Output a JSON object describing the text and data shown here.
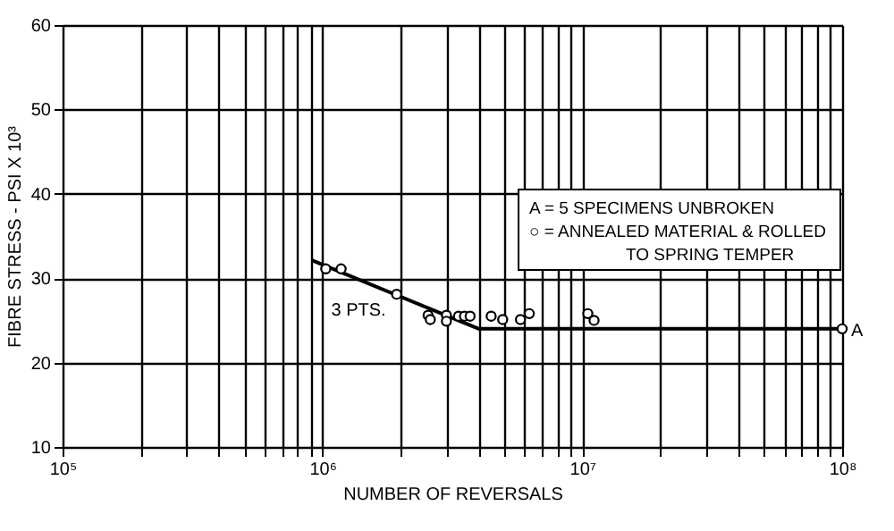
{
  "chart_data": {
    "type": "scatter",
    "xlabel": "NUMBER OF REVERSALS",
    "ylabel": "FIBRE STRESS - PSI X 10³",
    "log": "x",
    "grid": true,
    "marker": "circle",
    "xlim": [
      100000,
      100000000
    ],
    "ylim": [
      10,
      60
    ],
    "xticks": [
      {
        "value": 100000,
        "label": "10⁵"
      },
      {
        "value": 200000,
        "label": null
      },
      {
        "value": 300000,
        "label": null
      },
      {
        "value": 400000,
        "label": null
      },
      {
        "value": 500000,
        "label": null
      },
      {
        "value": 600000,
        "label": null
      },
      {
        "value": 700000,
        "label": null
      },
      {
        "value": 800000,
        "label": null
      },
      {
        "value": 900000,
        "label": null
      },
      {
        "value": 1000000,
        "label": "10⁶"
      },
      {
        "value": 2000000,
        "label": null
      },
      {
        "value": 3000000,
        "label": null
      },
      {
        "value": 4000000,
        "label": null
      },
      {
        "value": 5000000,
        "label": null
      },
      {
        "value": 6000000,
        "label": null
      },
      {
        "value": 7000000,
        "label": null
      },
      {
        "value": 8000000,
        "label": null
      },
      {
        "value": 9000000,
        "label": null
      },
      {
        "value": 10000000,
        "label": "10⁷"
      },
      {
        "value": 20000000,
        "label": null
      },
      {
        "value": 30000000,
        "label": null
      },
      {
        "value": 40000000,
        "label": null
      },
      {
        "value": 50000000,
        "label": null
      },
      {
        "value": 60000000,
        "label": null
      },
      {
        "value": 70000000,
        "label": null
      },
      {
        "value": 80000000,
        "label": null
      },
      {
        "value": 90000000,
        "label": null
      },
      {
        "value": 100000000,
        "label": "10⁸"
      }
    ],
    "yticks": [
      10,
      20,
      30,
      40,
      50,
      60
    ],
    "series": [
      {
        "type": "line",
        "color": "#000000",
        "marker": "none",
        "line_style": "solid",
        "x": [
          915000,
          4000000,
          100000000
        ],
        "values": [
          32.1,
          24,
          24
        ]
      },
      {
        "color": "#000000",
        "x": [
          1030000,
          1180000,
          1930000,
          2550000,
          2600000,
          3000000,
          3000000,
          3340000,
          3520000,
          3700000,
          4460000,
          4940000,
          5780000,
          6250000,
          10500000,
          11100000,
          100000000
        ],
        "values": [
          31.1,
          31.1,
          28.1,
          25.6,
          25.1,
          25.6,
          24.9,
          25.5,
          25.5,
          25.5,
          25.5,
          25.1,
          25.1,
          25.8,
          25.8,
          25.0,
          24
        ]
      }
    ],
    "annotations": [
      {
        "text": "3 PTS.",
        "x": 1930000,
        "y": 28.1
      },
      {
        "text": "A",
        "x": 100000000,
        "y": 24
      },
      "A = 5 SPECIMENS UNBROKEN",
      "○ = ANNEALED MATERIAL & ROLLED TO SPRING TEMPER"
    ]
  }
}
